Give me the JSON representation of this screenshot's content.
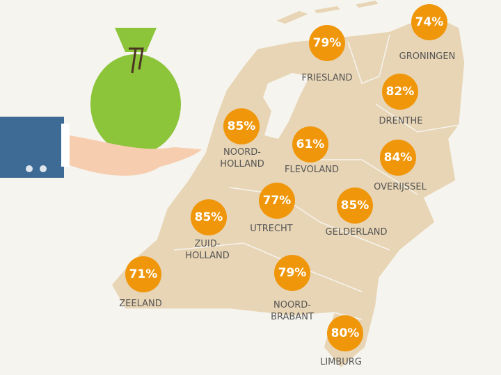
{
  "colors": {
    "background": "#f5f4ee",
    "land": "#e8d5b5",
    "bubble": "#f0960a",
    "bag": "#8cc43a",
    "sleeve": "#3e6a96"
  },
  "illustration": {
    "icon": "hand-holding-money-bag-icon"
  },
  "provinces": [
    {
      "name": "GRONINGEN",
      "value": "74%"
    },
    {
      "name": "FRIESLAND",
      "value": "79%"
    },
    {
      "name": "DRENTHE",
      "value": "82%"
    },
    {
      "name": "NOORD-\nHOLLAND",
      "value": "85%"
    },
    {
      "name": "FLEVOLAND",
      "value": "61%"
    },
    {
      "name": "OVERIJSSEL",
      "value": "84%"
    },
    {
      "name": "UTRECHT",
      "value": "77%"
    },
    {
      "name": "GELDERLAND",
      "value": "85%"
    },
    {
      "name": "ZUID-\nHOLLAND",
      "value": "85%"
    },
    {
      "name": "ZEELAND",
      "value": "71%"
    },
    {
      "name": "NOORD-\nBRABANT",
      "value": "79%"
    },
    {
      "name": "LIMBURG",
      "value": "80%"
    }
  ]
}
